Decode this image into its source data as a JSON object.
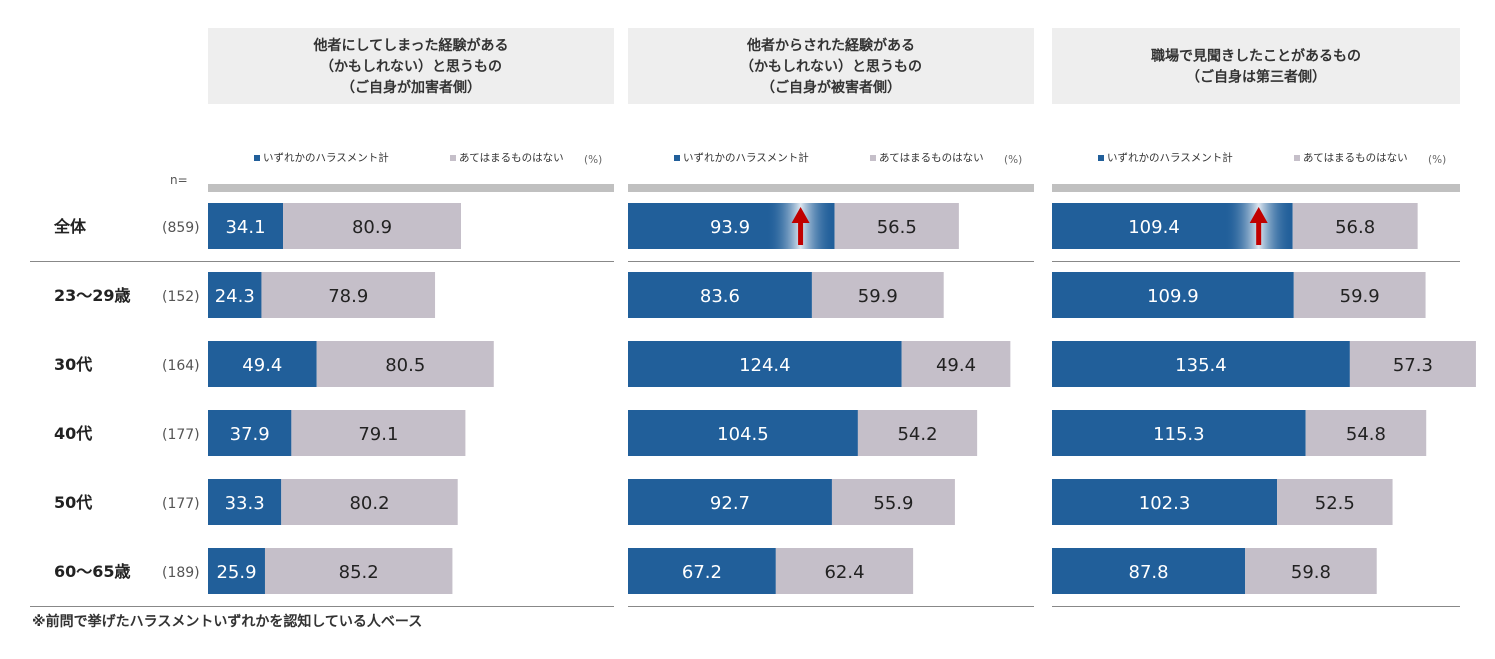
{
  "labels": {
    "n_header": "n=",
    "footnote": "※前問で挙げたハラスメントいずれかを認知している人ベース"
  },
  "colors": {
    "harassment": "#215f9a",
    "none": "#c5bfc9",
    "header_bg": "#eeeeee",
    "rule": "#c0c0c0",
    "arrow": "#c00000"
  },
  "chart_data": {
    "type": "bar",
    "stacked": true,
    "unit": "%",
    "rows": [
      {
        "label": "全体",
        "n": "(859)"
      },
      {
        "label": "23〜29歳",
        "n": "(152)"
      },
      {
        "label": "30代",
        "n": "(164)"
      },
      {
        "label": "40代",
        "n": "(177)"
      },
      {
        "label": "50代",
        "n": "(177)"
      },
      {
        "label": "60〜65歳",
        "n": "(189)"
      }
    ],
    "panels": [
      {
        "title_lines": [
          "他者にしてしまった経験がある",
          "（かもしれない）と思うもの",
          "（ご自身が加害者側）"
        ],
        "legend": {
          "harassment": "いずれかのハラスメント計",
          "none": "あてはまるものはない",
          "unit": "(%)"
        },
        "series": [
          {
            "name": "いずれかのハラスメント計",
            "values": [
              34.1,
              24.3,
              49.4,
              37.9,
              33.3,
              25.9
            ]
          },
          {
            "name": "あてはまるものはない",
            "values": [
              80.9,
              78.9,
              80.5,
              79.1,
              80.2,
              85.2
            ]
          }
        ],
        "highlight_total": false
      },
      {
        "title_lines": [
          "他者からされた経験がある",
          "（かもしれない）と思うもの",
          "（ご自身が被害者側）"
        ],
        "legend": {
          "harassment": "いずれかのハラスメント計",
          "none": "あてはまるものはない",
          "unit": "(%)"
        },
        "series": [
          {
            "name": "いずれかのハラスメント計",
            "values": [
              93.9,
              83.6,
              124.4,
              104.5,
              92.7,
              67.2
            ]
          },
          {
            "name": "あてはまるものはない",
            "values": [
              56.5,
              59.9,
              49.4,
              54.2,
              55.9,
              62.4
            ]
          }
        ],
        "highlight_total": true
      },
      {
        "title_lines": [
          "職場で見聞きしたことがあるもの",
          "（ご自身は第三者側）"
        ],
        "legend": {
          "harassment": "いずれかのハラスメント計",
          "none": "あてはまるものはない",
          "unit": "(%)"
        },
        "series": [
          {
            "name": "いずれかのハラスメント計",
            "values": [
              109.4,
              109.9,
              135.4,
              115.3,
              102.3,
              87.8
            ]
          },
          {
            "name": "あてはまるものはない",
            "values": [
              56.8,
              59.9,
              57.3,
              54.8,
              52.5,
              59.8
            ]
          }
        ],
        "highlight_total": true
      }
    ]
  }
}
